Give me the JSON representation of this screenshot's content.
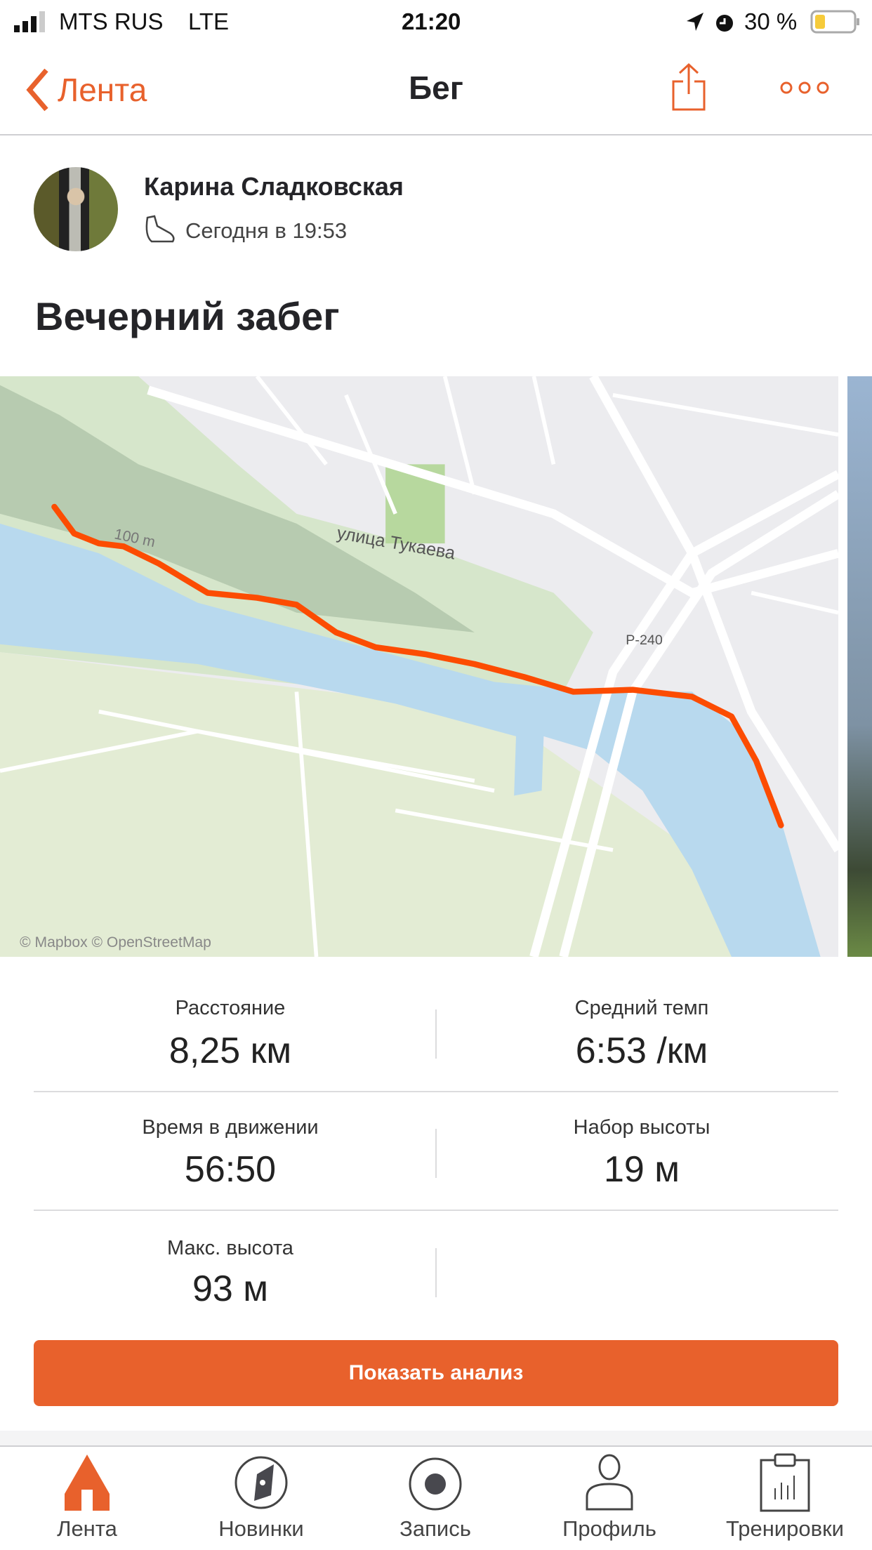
{
  "status_bar": {
    "carrier": "MTS RUS",
    "network": "LTE",
    "time": "21:20",
    "battery": "30 %",
    "icons": [
      "signal-icon",
      "location-icon",
      "alarm-icon",
      "battery-icon"
    ]
  },
  "nav": {
    "back_label": "Лента",
    "title": "Бег",
    "icons": [
      "chevron-left-icon",
      "share-icon",
      "more-icon"
    ]
  },
  "activity": {
    "athlete": "Карина Сладковская",
    "time": "Сегодня в 19:53",
    "title": "Вечерний забег",
    "type_icon": "shoe-icon"
  },
  "map": {
    "street": "улица Тукаева",
    "road": "Р-240",
    "scale": "100 m",
    "attribution": "© Mapbox © OpenStreetMap",
    "route_color": "#fc4c02"
  },
  "stats": [
    {
      "label": "Расстояние",
      "value": "8,25 км"
    },
    {
      "label": "Средний темп",
      "value": "6:53 /км"
    },
    {
      "label": "Время в движении",
      "value": "56:50"
    },
    {
      "label": "Набор высоты",
      "value": "19 м"
    },
    {
      "label": "Макс. высота",
      "value": "93 м"
    }
  ],
  "analysis_button": "Показать анализ",
  "tabs": [
    {
      "label": "Лента",
      "icon": "home-icon",
      "active": true
    },
    {
      "label": "Новинки",
      "icon": "compass-icon"
    },
    {
      "label": "Запись",
      "icon": "record-icon"
    },
    {
      "label": "Профиль",
      "icon": "profile-icon"
    },
    {
      "label": "Тренировки",
      "icon": "clipboard-icon"
    }
  ],
  "colors": {
    "accent": "#e8612c",
    "water": "#b8d9ee",
    "park": "#cfe3c0"
  }
}
